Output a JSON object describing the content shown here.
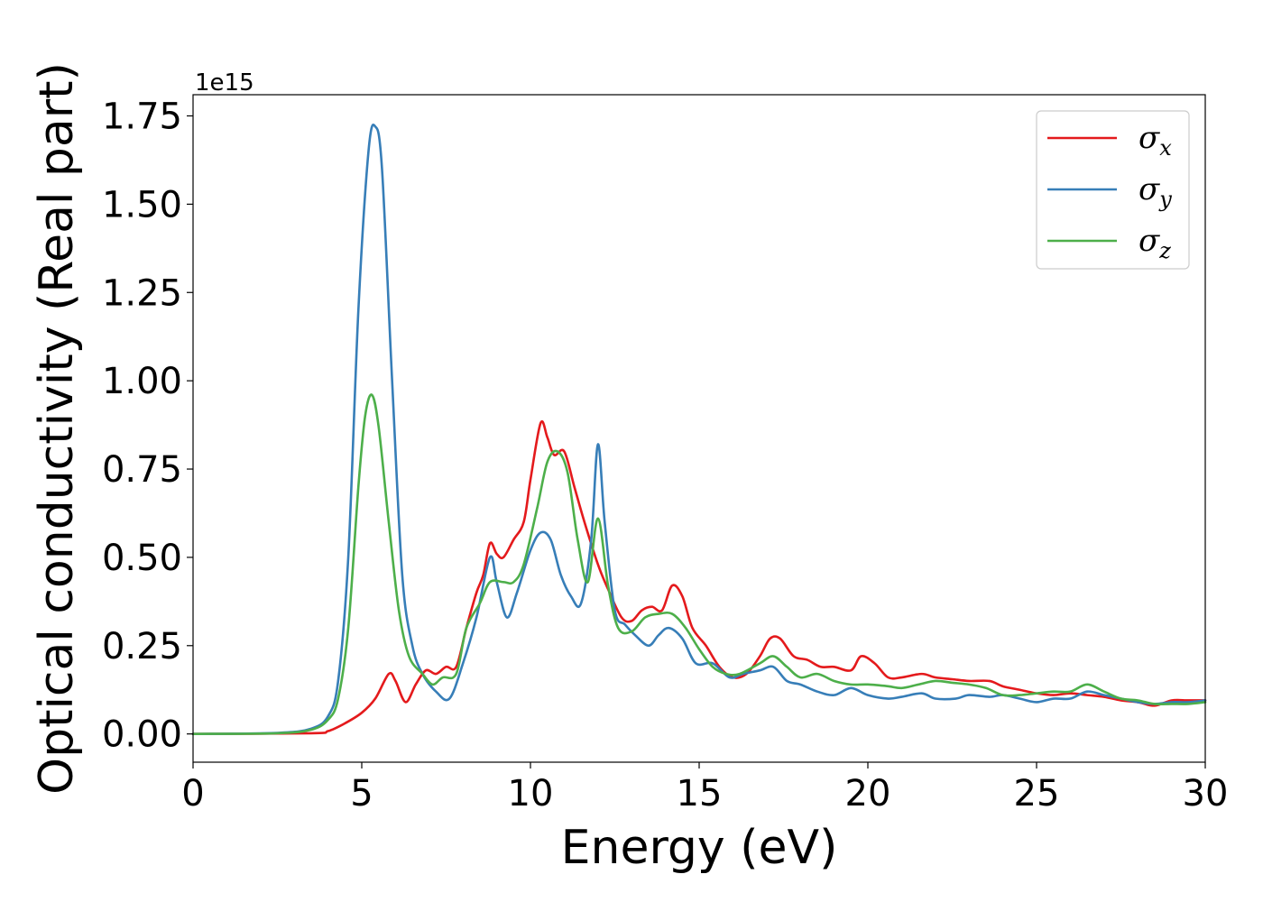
{
  "chart_data": {
    "type": "line",
    "xlabel": "Energy (eV)",
    "ylabel": "Optical conductivity (Real part)",
    "y_offset_label": "1e15",
    "xlim": [
      0,
      30
    ],
    "ylim": [
      -0.08,
      1.81
    ],
    "x_ticks": [
      0,
      5,
      10,
      15,
      20,
      25,
      30
    ],
    "x_tick_labels": [
      "0",
      "5",
      "10",
      "15",
      "20",
      "25",
      "30"
    ],
    "y_ticks": [
      0.0,
      0.25,
      0.5,
      0.75,
      1.0,
      1.25,
      1.5,
      1.75
    ],
    "y_tick_labels": [
      "0.00",
      "0.25",
      "0.50",
      "0.75",
      "1.00",
      "1.25",
      "1.50",
      "1.75"
    ],
    "grid": false,
    "legend_position": "top-right",
    "series": [
      {
        "name": "σx",
        "symbol": "σ",
        "subscript": "x",
        "color": "#e41a1c",
        "points": [
          [
            0,
            0
          ],
          [
            3.5,
            0.002
          ],
          [
            4,
            0.008
          ],
          [
            4.5,
            0.03
          ],
          [
            5,
            0.06
          ],
          [
            5.4,
            0.1
          ],
          [
            5.8,
            0.17
          ],
          [
            6,
            0.15
          ],
          [
            6.3,
            0.09
          ],
          [
            6.6,
            0.14
          ],
          [
            6.9,
            0.18
          ],
          [
            7.2,
            0.17
          ],
          [
            7.5,
            0.19
          ],
          [
            7.8,
            0.19
          ],
          [
            8.1,
            0.3
          ],
          [
            8.4,
            0.4
          ],
          [
            8.6,
            0.45
          ],
          [
            8.8,
            0.54
          ],
          [
            9,
            0.51
          ],
          [
            9.2,
            0.5
          ],
          [
            9.5,
            0.55
          ],
          [
            9.8,
            0.6
          ],
          [
            10,
            0.72
          ],
          [
            10.3,
            0.88
          ],
          [
            10.5,
            0.84
          ],
          [
            10.7,
            0.79
          ],
          [
            11,
            0.8
          ],
          [
            11.3,
            0.7
          ],
          [
            11.6,
            0.6
          ],
          [
            12,
            0.48
          ],
          [
            12.3,
            0.41
          ],
          [
            12.7,
            0.33
          ],
          [
            13,
            0.32
          ],
          [
            13.3,
            0.35
          ],
          [
            13.6,
            0.36
          ],
          [
            13.9,
            0.35
          ],
          [
            14.2,
            0.42
          ],
          [
            14.5,
            0.39
          ],
          [
            14.8,
            0.3
          ],
          [
            15.2,
            0.25
          ],
          [
            15.6,
            0.19
          ],
          [
            16,
            0.16
          ],
          [
            16.4,
            0.17
          ],
          [
            16.8,
            0.22
          ],
          [
            17.1,
            0.27
          ],
          [
            17.4,
            0.27
          ],
          [
            17.8,
            0.22
          ],
          [
            18.2,
            0.21
          ],
          [
            18.6,
            0.19
          ],
          [
            19,
            0.19
          ],
          [
            19.5,
            0.18
          ],
          [
            19.8,
            0.22
          ],
          [
            20.2,
            0.2
          ],
          [
            20.6,
            0.16
          ],
          [
            21,
            0.16
          ],
          [
            21.6,
            0.17
          ],
          [
            22,
            0.16
          ],
          [
            22.5,
            0.155
          ],
          [
            23,
            0.15
          ],
          [
            23.6,
            0.15
          ],
          [
            24,
            0.135
          ],
          [
            24.5,
            0.125
          ],
          [
            25,
            0.115
          ],
          [
            25.5,
            0.11
          ],
          [
            26,
            0.115
          ],
          [
            26.5,
            0.11
          ],
          [
            27,
            0.105
          ],
          [
            27.5,
            0.095
          ],
          [
            28,
            0.09
          ],
          [
            28.5,
            0.08
          ],
          [
            29,
            0.095
          ],
          [
            29.5,
            0.095
          ],
          [
            30,
            0.095
          ]
        ]
      },
      {
        "name": "σy",
        "symbol": "σ",
        "subscript": "y",
        "color": "#377eb8",
        "points": [
          [
            0,
            0
          ],
          [
            2.5,
            0.003
          ],
          [
            3.5,
            0.015
          ],
          [
            4,
            0.05
          ],
          [
            4.3,
            0.15
          ],
          [
            4.6,
            0.5
          ],
          [
            4.9,
            1.2
          ],
          [
            5.2,
            1.65
          ],
          [
            5.4,
            1.72
          ],
          [
            5.6,
            1.6
          ],
          [
            5.9,
            1.0
          ],
          [
            6.2,
            0.45
          ],
          [
            6.5,
            0.25
          ],
          [
            6.8,
            0.17
          ],
          [
            7.2,
            0.12
          ],
          [
            7.6,
            0.1
          ],
          [
            8,
            0.2
          ],
          [
            8.4,
            0.33
          ],
          [
            8.8,
            0.5
          ],
          [
            9,
            0.43
          ],
          [
            9.3,
            0.33
          ],
          [
            9.6,
            0.4
          ],
          [
            10,
            0.52
          ],
          [
            10.3,
            0.57
          ],
          [
            10.6,
            0.55
          ],
          [
            10.9,
            0.45
          ],
          [
            11.2,
            0.39
          ],
          [
            11.5,
            0.37
          ],
          [
            11.8,
            0.55
          ],
          [
            12,
            0.82
          ],
          [
            12.2,
            0.6
          ],
          [
            12.5,
            0.35
          ],
          [
            12.8,
            0.31
          ],
          [
            13.1,
            0.28
          ],
          [
            13.5,
            0.25
          ],
          [
            13.8,
            0.28
          ],
          [
            14.1,
            0.3
          ],
          [
            14.5,
            0.27
          ],
          [
            14.9,
            0.2
          ],
          [
            15.4,
            0.2
          ],
          [
            15.9,
            0.16
          ],
          [
            16.3,
            0.17
          ],
          [
            16.8,
            0.18
          ],
          [
            17.2,
            0.19
          ],
          [
            17.6,
            0.15
          ],
          [
            18,
            0.14
          ],
          [
            18.5,
            0.12
          ],
          [
            19,
            0.11
          ],
          [
            19.5,
            0.13
          ],
          [
            20,
            0.11
          ],
          [
            20.6,
            0.1
          ],
          [
            21,
            0.105
          ],
          [
            21.6,
            0.115
          ],
          [
            22,
            0.1
          ],
          [
            22.6,
            0.1
          ],
          [
            23,
            0.11
          ],
          [
            23.6,
            0.105
          ],
          [
            24,
            0.11
          ],
          [
            24.5,
            0.1
          ],
          [
            25,
            0.09
          ],
          [
            25.5,
            0.1
          ],
          [
            26,
            0.1
          ],
          [
            26.5,
            0.12
          ],
          [
            27,
            0.11
          ],
          [
            27.5,
            0.1
          ],
          [
            28,
            0.09
          ],
          [
            28.5,
            0.085
          ],
          [
            29,
            0.09
          ],
          [
            29.5,
            0.09
          ],
          [
            30,
            0.095
          ]
        ]
      },
      {
        "name": "σz",
        "symbol": "σ",
        "subscript": "z",
        "color": "#4daf4a",
        "points": [
          [
            0,
            0
          ],
          [
            2.5,
            0.002
          ],
          [
            3.5,
            0.012
          ],
          [
            4,
            0.04
          ],
          [
            4.3,
            0.1
          ],
          [
            4.6,
            0.3
          ],
          [
            4.9,
            0.7
          ],
          [
            5.1,
            0.9
          ],
          [
            5.3,
            0.96
          ],
          [
            5.5,
            0.87
          ],
          [
            5.8,
            0.6
          ],
          [
            6.1,
            0.35
          ],
          [
            6.4,
            0.22
          ],
          [
            6.8,
            0.17
          ],
          [
            7.1,
            0.14
          ],
          [
            7.4,
            0.16
          ],
          [
            7.8,
            0.17
          ],
          [
            8.1,
            0.3
          ],
          [
            8.5,
            0.37
          ],
          [
            8.8,
            0.43
          ],
          [
            9.2,
            0.43
          ],
          [
            9.5,
            0.43
          ],
          [
            9.8,
            0.48
          ],
          [
            10.2,
            0.64
          ],
          [
            10.5,
            0.77
          ],
          [
            10.8,
            0.8
          ],
          [
            11.1,
            0.74
          ],
          [
            11.4,
            0.55
          ],
          [
            11.7,
            0.43
          ],
          [
            12,
            0.61
          ],
          [
            12.3,
            0.42
          ],
          [
            12.6,
            0.3
          ],
          [
            13,
            0.29
          ],
          [
            13.4,
            0.33
          ],
          [
            13.8,
            0.34
          ],
          [
            14.2,
            0.34
          ],
          [
            14.6,
            0.3
          ],
          [
            15,
            0.24
          ],
          [
            15.4,
            0.19
          ],
          [
            15.8,
            0.17
          ],
          [
            16.2,
            0.17
          ],
          [
            16.8,
            0.2
          ],
          [
            17.2,
            0.22
          ],
          [
            17.6,
            0.19
          ],
          [
            18,
            0.16
          ],
          [
            18.5,
            0.17
          ],
          [
            19,
            0.15
          ],
          [
            19.5,
            0.14
          ],
          [
            20,
            0.14
          ],
          [
            20.6,
            0.135
          ],
          [
            21,
            0.13
          ],
          [
            21.5,
            0.14
          ],
          [
            22,
            0.15
          ],
          [
            22.5,
            0.145
          ],
          [
            23,
            0.14
          ],
          [
            23.5,
            0.13
          ],
          [
            24,
            0.11
          ],
          [
            24.5,
            0.11
          ],
          [
            25,
            0.115
          ],
          [
            25.5,
            0.12
          ],
          [
            26,
            0.12
          ],
          [
            26.5,
            0.14
          ],
          [
            27,
            0.12
          ],
          [
            27.5,
            0.1
          ],
          [
            28,
            0.095
          ],
          [
            28.5,
            0.085
          ],
          [
            29,
            0.085
          ],
          [
            29.5,
            0.085
          ],
          [
            30,
            0.09
          ]
        ]
      }
    ]
  }
}
